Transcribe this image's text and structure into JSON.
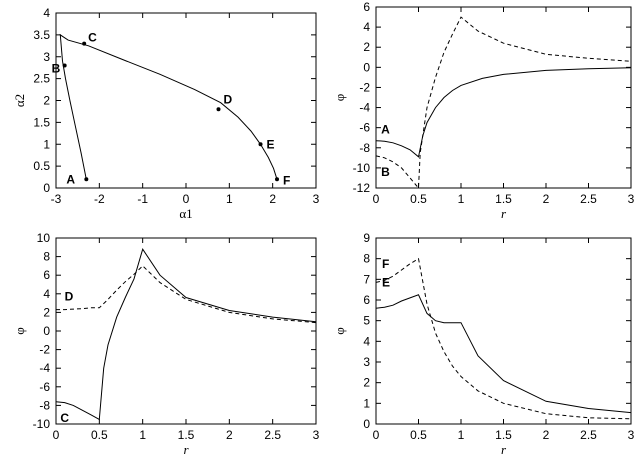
{
  "chart_data": [
    {
      "type": "line",
      "title": "",
      "xlabel": "α1",
      "ylabel": "α2",
      "xlim": [
        -3,
        3
      ],
      "ylim": [
        0,
        4
      ],
      "xticks": [
        "-3",
        "-2",
        "-1",
        "0",
        "1",
        "2",
        "3"
      ],
      "yticks": [
        "0",
        "0.5",
        "1",
        "1.5",
        "2",
        "2.5",
        "3",
        "3.5",
        "4"
      ],
      "grid": false,
      "series": [
        {
          "style": "solid",
          "x": [
            -2.3,
            -2.42,
            -2.55,
            -2.68,
            -2.78,
            -2.85,
            -2.9,
            -2.72,
            -2.25,
            -1.5,
            -0.6,
            0.2,
            0.8,
            1.2,
            1.5,
            1.72,
            1.9,
            2.02,
            2.1
          ],
          "y": [
            0.2,
            0.8,
            1.4,
            2.0,
            2.5,
            2.9,
            3.5,
            3.38,
            3.25,
            2.95,
            2.6,
            2.25,
            1.95,
            1.62,
            1.3,
            1.0,
            0.7,
            0.45,
            0.2
          ]
        }
      ],
      "points": [
        {
          "label": "A",
          "x": -2.3,
          "y": 0.2
        },
        {
          "label": "B",
          "x": -2.8,
          "y": 2.8
        },
        {
          "label": "C",
          "x": -2.35,
          "y": 3.3
        },
        {
          "label": "D",
          "x": 0.75,
          "y": 1.8
        },
        {
          "label": "E",
          "x": 1.72,
          "y": 1.0
        },
        {
          "label": "F",
          "x": 2.1,
          "y": 0.2
        }
      ]
    },
    {
      "type": "line",
      "title": "",
      "xlabel": "r",
      "ylabel": "φ",
      "xlim": [
        0,
        3
      ],
      "ylim": [
        -12,
        6
      ],
      "xticks": [
        "0",
        "0.5",
        "1",
        "1.5",
        "2",
        "2.5",
        "3"
      ],
      "yticks": [
        "-12",
        "-10",
        "-8",
        "-6",
        "-4",
        "-2",
        "0",
        "2",
        "4",
        "6"
      ],
      "grid": false,
      "series": [
        {
          "label": "A",
          "style": "solid",
          "x": [
            0,
            0.1,
            0.2,
            0.3,
            0.4,
            0.5,
            0.55,
            0.6,
            0.7,
            0.8,
            0.9,
            1.0,
            1.25,
            1.5,
            2.0,
            2.5,
            3.0
          ],
          "y": [
            -7.3,
            -7.35,
            -7.5,
            -7.8,
            -8.2,
            -8.9,
            -6.8,
            -5.5,
            -4.0,
            -3.0,
            -2.3,
            -1.8,
            -1.1,
            -0.7,
            -0.3,
            -0.15,
            -0.05
          ]
        },
        {
          "label": "B",
          "style": "dashed",
          "x": [
            0,
            0.1,
            0.2,
            0.3,
            0.4,
            0.48,
            0.5,
            0.52,
            0.6,
            0.7,
            0.8,
            0.9,
            1.0,
            1.2,
            1.5,
            2.0,
            2.5,
            3.0
          ],
          "y": [
            -8.8,
            -9.0,
            -9.4,
            -10.0,
            -11.0,
            -11.8,
            -12.0,
            -8.5,
            -4.0,
            -1.0,
            1.5,
            3.3,
            5.0,
            3.6,
            2.4,
            1.3,
            0.9,
            0.6
          ]
        }
      ]
    },
    {
      "type": "line",
      "title": "",
      "xlabel": "r",
      "ylabel": "φ",
      "xlim": [
        0,
        3
      ],
      "ylim": [
        -10,
        10
      ],
      "xticks": [
        "0",
        "0.5",
        "1",
        "1.5",
        "2",
        "2.5",
        "3"
      ],
      "yticks": [
        "-10",
        "-8",
        "-6",
        "-4",
        "-2",
        "0",
        "2",
        "4",
        "6",
        "8",
        "10"
      ],
      "grid": false,
      "series": [
        {
          "label": "C",
          "style": "solid",
          "x": [
            0,
            0.1,
            0.2,
            0.3,
            0.4,
            0.5,
            0.55,
            0.6,
            0.7,
            0.8,
            0.9,
            1.0,
            1.2,
            1.5,
            2.0,
            2.5,
            3.0
          ],
          "y": [
            -7.6,
            -7.7,
            -8.0,
            -8.5,
            -9.0,
            -9.5,
            -4.0,
            -1.5,
            1.5,
            3.6,
            5.6,
            8.8,
            6.0,
            3.6,
            2.2,
            1.5,
            1.0
          ]
        },
        {
          "label": "D",
          "style": "dashed",
          "x": [
            0,
            0.1,
            0.2,
            0.3,
            0.4,
            0.5,
            0.6,
            0.7,
            0.8,
            0.9,
            1.0,
            1.2,
            1.5,
            2.0,
            2.5,
            3.0
          ],
          "y": [
            2.3,
            2.3,
            2.35,
            2.4,
            2.5,
            2.5,
            3.4,
            4.4,
            5.3,
            6.1,
            7.0,
            5.2,
            3.4,
            2.0,
            1.3,
            0.9
          ]
        }
      ]
    },
    {
      "type": "line",
      "title": "",
      "xlabel": "r",
      "ylabel": "φ",
      "xlim": [
        0,
        3
      ],
      "ylim": [
        0,
        9
      ],
      "xticks": [
        "0",
        "0.5",
        "1",
        "1.5",
        "2",
        "2.5",
        "3"
      ],
      "yticks": [
        "0",
        "1",
        "2",
        "3",
        "4",
        "5",
        "6",
        "7",
        "8",
        "9"
      ],
      "grid": false,
      "series": [
        {
          "label": "E",
          "style": "solid",
          "x": [
            0,
            0.1,
            0.2,
            0.3,
            0.4,
            0.5,
            0.6,
            0.7,
            0.8,
            0.9,
            1.0,
            1.2,
            1.5,
            2.0,
            2.5,
            3.0
          ],
          "y": [
            5.6,
            5.65,
            5.75,
            5.95,
            6.1,
            6.25,
            5.35,
            5.0,
            4.9,
            4.9,
            4.9,
            3.3,
            2.1,
            1.1,
            0.75,
            0.55
          ]
        },
        {
          "label": "F",
          "style": "dashed",
          "x": [
            0,
            0.1,
            0.2,
            0.3,
            0.4,
            0.5,
            0.6,
            0.7,
            0.8,
            0.9,
            1.0,
            1.2,
            1.5,
            2.0,
            2.5,
            3.0
          ],
          "y": [
            6.85,
            6.95,
            7.15,
            7.45,
            7.75,
            8.0,
            5.8,
            4.4,
            3.5,
            2.8,
            2.3,
            1.6,
            1.0,
            0.5,
            0.3,
            0.25
          ]
        }
      ]
    }
  ]
}
